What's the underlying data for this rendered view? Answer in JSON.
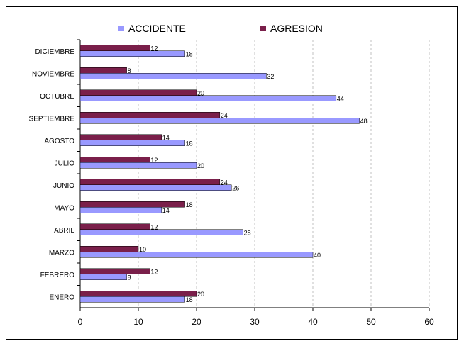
{
  "chart_data": {
    "type": "bar",
    "orientation": "horizontal",
    "categories": [
      "ENERO",
      "FEBRERO",
      "MARZO",
      "ABRIL",
      "MAYO",
      "JUNIO",
      "JULIO",
      "AGOSTO",
      "SEPTIEMBRE",
      "OCTUBRE",
      "NOVIEMBRE",
      "DICIEMBRE"
    ],
    "series": [
      {
        "name": "ACCIDENTE",
        "color": "#9999ff",
        "values": [
          18,
          8,
          40,
          28,
          14,
          26,
          20,
          18,
          48,
          44,
          32,
          18
        ]
      },
      {
        "name": "AGRESION",
        "color": "#7a1f4a",
        "values": [
          20,
          12,
          10,
          12,
          18,
          24,
          12,
          14,
          24,
          20,
          8,
          12
        ]
      }
    ],
    "xlim": [
      0,
      60
    ],
    "xticks": [
      0,
      10,
      20,
      30,
      40,
      50,
      60
    ],
    "grid": "vertical dashed",
    "legend": "top",
    "data_labels": true
  }
}
